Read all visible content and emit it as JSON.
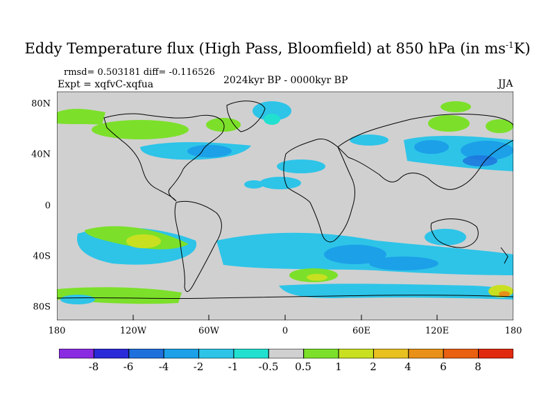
{
  "title": {
    "main": "Eddy Temperature flux (High Pass, Bloomfield) at 850 hPa (in ms",
    "sup": "-1",
    "end": "K)"
  },
  "stats": "rmsd= 0.503181 diff= -0.116526",
  "expt": "Expt = xqfvC-xqfua",
  "period": "2024kyr BP - 0000kyr BP",
  "season": "JJA",
  "axes": {
    "y_labels": [
      "80N",
      "40N",
      "0",
      "40S",
      "80S"
    ],
    "x_labels": [
      "180",
      "120W",
      "60W",
      "0",
      "60E",
      "120E",
      "180"
    ]
  },
  "colorbar": {
    "labels": [
      "-8",
      "-6",
      "-4",
      "-2",
      "-1",
      "-0.5",
      "0.5",
      "1",
      "2",
      "4",
      "6",
      "8"
    ],
    "colors": [
      "#8a2be2",
      "#2a2ad8",
      "#1e70dc",
      "#1ca0e8",
      "#2dc4e8",
      "#22e0d0",
      "#d0d0d0",
      "#7ce02a",
      "#c8e020",
      "#e8c020",
      "#e89018",
      "#e86010",
      "#e02a10"
    ]
  },
  "palette": {
    "background": "#d0d0d0",
    "coast": "#000000"
  }
}
